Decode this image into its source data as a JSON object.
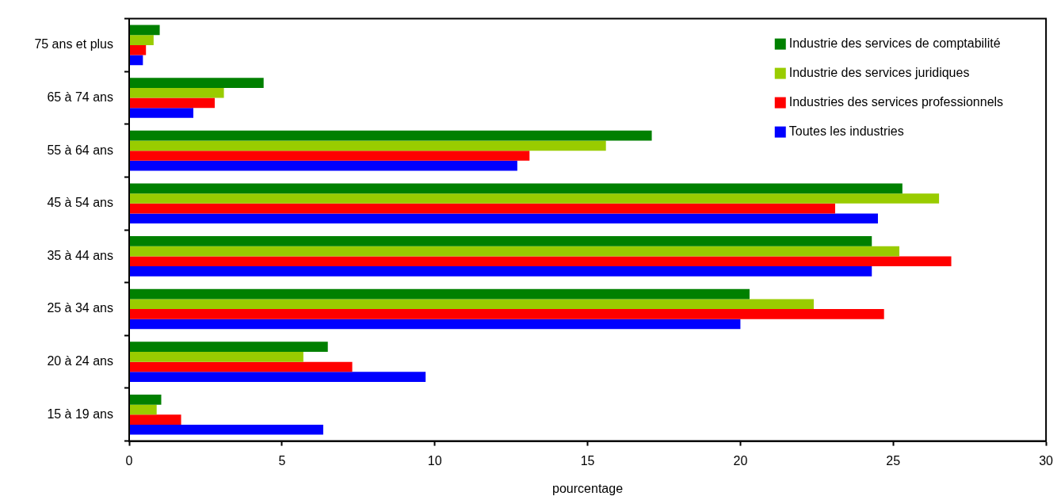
{
  "chart_data": {
    "type": "bar",
    "orientation": "horizontal",
    "xlabel": "pourcentage",
    "categories": [
      "75 ans et plus",
      "65 à 74 ans",
      "55 à 64 ans",
      "45 à 54 ans",
      "35 à 44 ans",
      "25 à 34 ans",
      "20 à 24 ans",
      "15 à 19 ans"
    ],
    "series": [
      {
        "name": "Industrie des services de comptabilité",
        "color": "#008000",
        "values": [
          1.0,
          4.4,
          17.1,
          25.3,
          24.3,
          20.3,
          6.5,
          1.05
        ]
      },
      {
        "name": "Industrie des services juridiques",
        "color": "#99cc00",
        "values": [
          0.8,
          3.1,
          15.6,
          26.5,
          25.2,
          22.4,
          5.7,
          0.9
        ]
      },
      {
        "name": "Industries des services professionnels",
        "color": "#ff0000",
        "values": [
          0.55,
          2.8,
          13.1,
          23.1,
          26.9,
          24.7,
          7.3,
          1.7
        ]
      },
      {
        "name": "Toutes les industries",
        "color": "#0000ff",
        "values": [
          0.45,
          2.1,
          12.7,
          24.5,
          24.3,
          20.0,
          9.7,
          6.35
        ]
      }
    ],
    "xlim": [
      0,
      30
    ],
    "xticks": [
      0,
      5,
      10,
      15,
      20,
      25,
      30
    ],
    "grid": false,
    "legend": "top right"
  }
}
